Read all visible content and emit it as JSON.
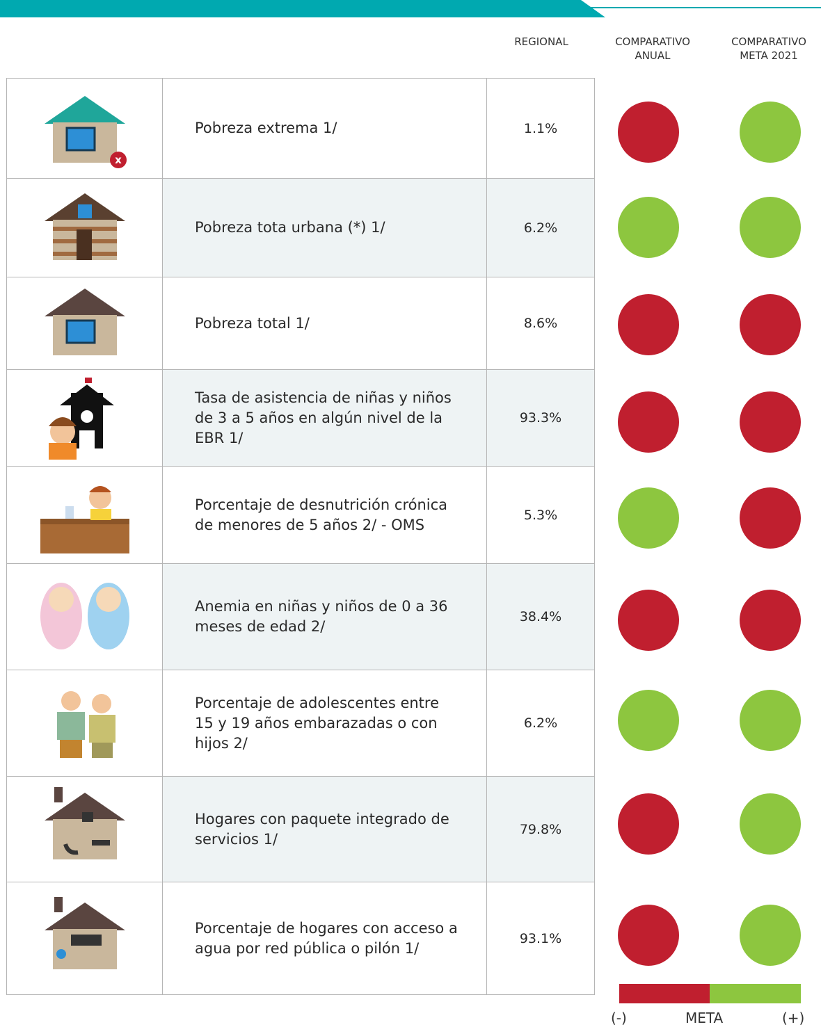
{
  "header": {
    "columns": [
      "REGIONAL",
      "COMPARATIVO ANUAL",
      "COMPARATIVO META 2021"
    ]
  },
  "table": {
    "rows": [
      {
        "indicator": "Pobreza extrema 1/",
        "regional": "1.1%",
        "anual_color": "#c01f2f",
        "meta_color": "#8dc63f"
      },
      {
        "indicator": "Pobreza tota urbana (*) 1/",
        "regional": "6.2%",
        "anual_color": "#8dc63f",
        "meta_color": "#8dc63f"
      },
      {
        "indicator": "Pobreza total 1/",
        "regional": "8.6%",
        "anual_color": "#c01f2f",
        "meta_color": "#c01f2f"
      },
      {
        "indicator": "Tasa de asistencia de niñas y niños de 3 a 5 años en algún nivel de la EBR 1/",
        "regional": "93.3%",
        "anual_color": "#c01f2f",
        "meta_color": "#c01f2f"
      },
      {
        "indicator": "Porcentaje de desnutrición crónica de menores de 5 años 2/ - OMS",
        "regional": "5.3%",
        "anual_color": "#8dc63f",
        "meta_color": "#c01f2f"
      },
      {
        "indicator": "Anemia en niñas y niños de 0 a 36 meses de edad 2/",
        "regional": "38.4%",
        "anual_color": "#c01f2f",
        "meta_color": "#c01f2f"
      },
      {
        "indicator": "Porcentaje de adolescentes entre 15 y 19 años embarazadas o con hijos 2/",
        "regional": "6.2%",
        "anual_color": "#8dc63f",
        "meta_color": "#8dc63f"
      },
      {
        "indicator": "Hogares con paquete integrado de servicios 1/",
        "regional": "79.8%",
        "anual_color": "#c01f2f",
        "meta_color": "#8dc63f"
      },
      {
        "indicator": "Porcentaje de hogares con acceso a agua por red pública o pilón 1/",
        "regional": "93.1%",
        "anual_color": "#c01f2f",
        "meta_color": "#8dc63f"
      }
    ]
  },
  "legend": {
    "negative": "(-)",
    "label": "META",
    "positive": "(+)",
    "negative_color": "#c01f2f",
    "positive_color": "#8dc63f"
  }
}
